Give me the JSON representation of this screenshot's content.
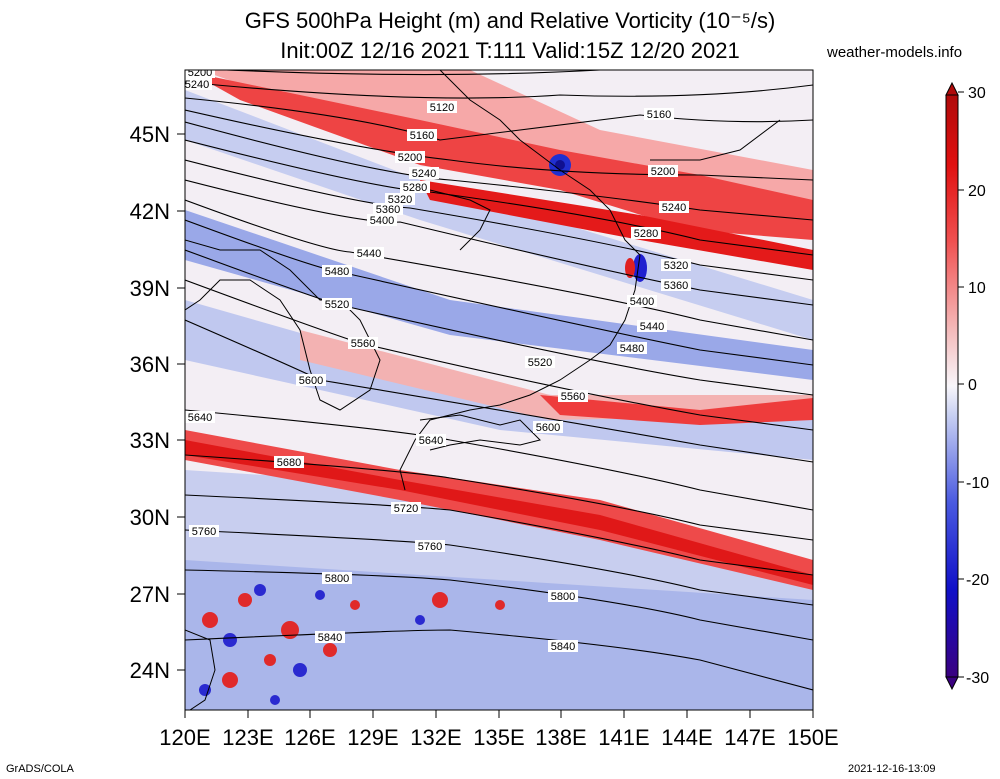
{
  "title_line1": "GFS 500hPa Height (m) and Relative Vorticity (10⁻⁵/s)",
  "title_line2": "Init:00Z 12/16 2021 T:111 Valid:15Z 12/20 2021",
  "site": "weather-models.info",
  "footer_left": "GrADS/COLA",
  "footer_right": "2021-12-16-13:09",
  "lon_labels": [
    "120E",
    "123E",
    "126E",
    "129E",
    "132E",
    "135E",
    "138E",
    "141E",
    "144E",
    "147E",
    "150E"
  ],
  "lat_labels": [
    "24N",
    "27N",
    "30N",
    "33N",
    "36N",
    "39N",
    "42N",
    "45N"
  ],
  "colorbar_labels": [
    "30",
    "20",
    "10",
    "0",
    "-10",
    "-20",
    "-30"
  ],
  "contours": [
    {
      "v": "5120",
      "label": "5120"
    },
    {
      "v": "5160",
      "label": "5160"
    },
    {
      "v": "5200",
      "label": "5200"
    },
    {
      "v": "5240",
      "label": "5240"
    },
    {
      "v": "5280",
      "label": "5280"
    },
    {
      "v": "5320",
      "label": "5320"
    },
    {
      "v": "5360",
      "label": "5360"
    },
    {
      "v": "5400",
      "label": "5400"
    },
    {
      "v": "5440",
      "label": "5440"
    },
    {
      "v": "5480",
      "label": "5480"
    },
    {
      "v": "5520",
      "label": "5520"
    },
    {
      "v": "5560",
      "label": "5560"
    },
    {
      "v": "5600",
      "label": "5600"
    },
    {
      "v": "5640",
      "label": "5640"
    },
    {
      "v": "5680",
      "label": "5680"
    },
    {
      "v": "5720",
      "label": "5720"
    },
    {
      "v": "5760",
      "label": "5760"
    },
    {
      "v": "5800",
      "label": "5800"
    },
    {
      "v": "5840",
      "label": "5840"
    }
  ],
  "colors": {
    "strong_red": "#e8181c",
    "light_red": "#f7b0b0",
    "white": "#f6f3f8",
    "light_blue": "#b3bdee",
    "blue": "#2020d8",
    "navy": "#1a0a9a"
  }
}
